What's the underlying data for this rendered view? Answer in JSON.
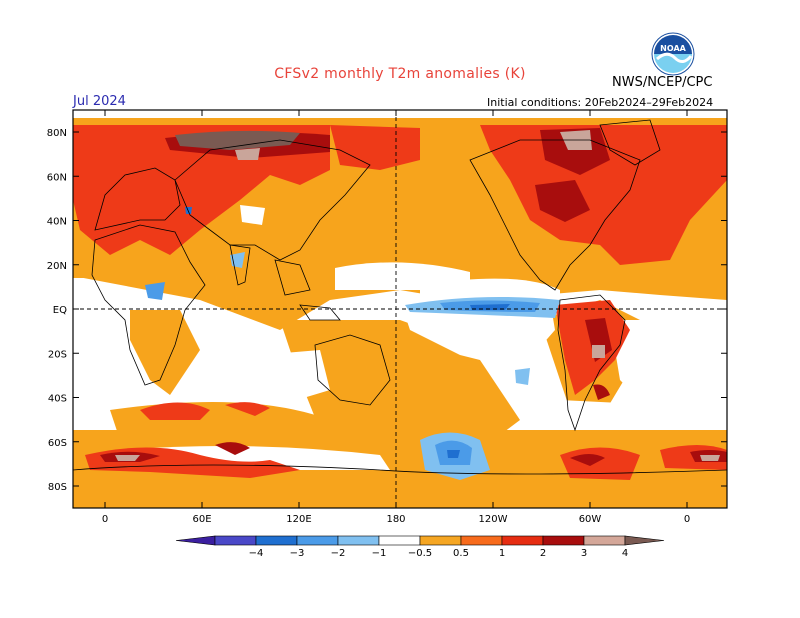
{
  "title": "CFSv2 monthly T2m anomalies (K)",
  "agency": "NWS/NCEP/CPC",
  "logo_text": "NOAA",
  "valid_month": "Jul 2024",
  "initial_conditions": "Initial conditions: 20Feb2024–29Feb2024",
  "lat_labels": [
    "80N",
    "60N",
    "40N",
    "20N",
    "EQ",
    "20S",
    "40S",
    "60S",
    "80S"
  ],
  "lon_labels": [
    "0",
    "60E",
    "120E",
    "180",
    "120W",
    "60W",
    "0"
  ],
  "legend": {
    "labels": [
      "−4",
      "−3",
      "−2",
      "−1",
      "−0.5",
      "0.5",
      "1",
      "2",
      "3",
      "4"
    ],
    "colors": [
      "#3b1fa0",
      "#4a48c8",
      "#1f6fd0",
      "#4b9be8",
      "#80c0f0",
      "#ffffff",
      "#f5a623",
      "#f76b1c",
      "#e62d12",
      "#a80d0d",
      "#d4a799",
      "#7a5a52"
    ]
  },
  "colors": {
    "title": "#e8433a",
    "month": "#2b2bb0",
    "warm_light": "#f7a41c",
    "warm_mid": "#f77b23",
    "warm_strong": "#ee3a18",
    "warm_very": "#a80d0d",
    "warm_extreme": "#c9a59a",
    "warm_max": "#7a5a52",
    "cool_light": "#80c0f0",
    "cool_mid": "#4b9be8",
    "cool_strong": "#1f6fd0",
    "cool_very": "#4a48c8"
  }
}
